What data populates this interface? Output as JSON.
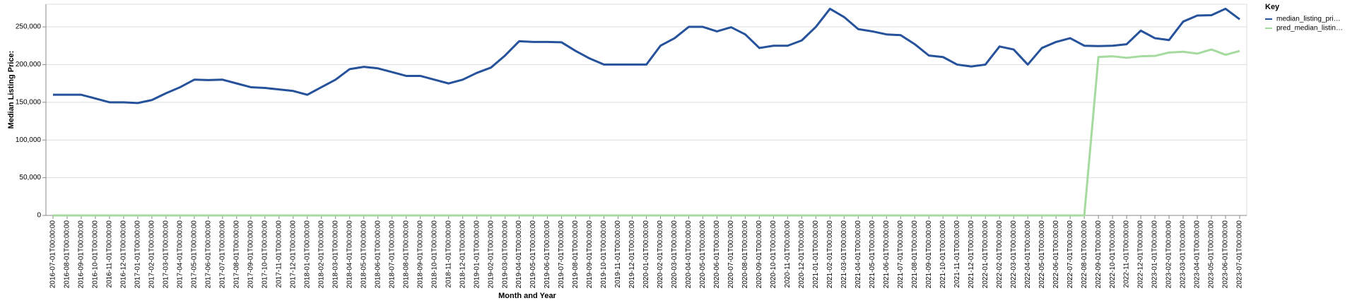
{
  "chart_data": {
    "type": "line",
    "x_label": "Month and Year",
    "y_label": "Median Listing Price:",
    "legend_title": "Key",
    "legend_position": "top-right",
    "grid": true,
    "ylim": [
      0,
      280000
    ],
    "yticks": [
      0,
      {
        "value": 50000,
        "label": "50,000"
      },
      {
        "value": 100000,
        "label": "100,000"
      },
      {
        "value": 150000,
        "label": "150,000"
      },
      {
        "value": 200000,
        "label": "200,000"
      },
      {
        "value": 250000,
        "label": "250,000"
      }
    ],
    "categories": [
      "2016-07-01T00:00:00",
      "2016-08-01T00:00:00",
      "2016-09-01T00:00:00",
      "2016-10-01T00:00:00",
      "2016-11-01T00:00:00",
      "2016-12-01T00:00:00",
      "2017-01-01T00:00:00",
      "2017-02-01T00:00:00",
      "2017-03-01T00:00:00",
      "2017-04-01T00:00:00",
      "2017-05-01T00:00:00",
      "2017-06-01T00:00:00",
      "2017-07-01T00:00:00",
      "2017-08-01T00:00:00",
      "2017-09-01T00:00:00",
      "2017-10-01T00:00:00",
      "2017-11-01T00:00:00",
      "2017-12-01T00:00:00",
      "2018-01-01T00:00:00",
      "2018-02-01T00:00:00",
      "2018-03-01T00:00:00",
      "2018-04-01T00:00:00",
      "2018-05-01T00:00:00",
      "2018-06-01T00:00:00",
      "2018-07-01T00:00:00",
      "2018-08-01T00:00:00",
      "2018-09-01T00:00:00",
      "2018-10-01T00:00:00",
      "2018-11-01T00:00:00",
      "2018-12-01T00:00:00",
      "2019-01-01T00:00:00",
      "2019-02-01T00:00:00",
      "2019-03-01T00:00:00",
      "2019-04-01T00:00:00",
      "2019-05-01T00:00:00",
      "2019-06-01T00:00:00",
      "2019-07-01T00:00:00",
      "2019-08-01T00:00:00",
      "2019-09-01T00:00:00",
      "2019-10-01T00:00:00",
      "2019-11-01T00:00:00",
      "2019-12-01T00:00:00",
      "2020-01-01T00:00:00",
      "2020-02-01T00:00:00",
      "2020-03-01T00:00:00",
      "2020-04-01T00:00:00",
      "2020-05-01T00:00:00",
      "2020-06-01T00:00:00",
      "2020-07-01T00:00:00",
      "2020-08-01T00:00:00",
      "2020-09-01T00:00:00",
      "2020-10-01T00:00:00",
      "2020-11-01T00:00:00",
      "2020-12-01T00:00:00",
      "2021-01-01T00:00:00",
      "2021-02-01T00:00:00",
      "2021-03-01T00:00:00",
      "2021-04-01T00:00:00",
      "2021-05-01T00:00:00",
      "2021-06-01T00:00:00",
      "2021-07-01T00:00:00",
      "2021-08-01T00:00:00",
      "2021-09-01T00:00:00",
      "2021-10-01T00:00:00",
      "2021-11-01T00:00:00",
      "2021-12-01T00:00:00",
      "2022-01-01T00:00:00",
      "2022-02-01T00:00:00",
      "2022-03-01T00:00:00",
      "2022-04-01T00:00:00",
      "2022-05-01T00:00:00",
      "2022-06-01T00:00:00",
      "2022-07-01T00:00:00",
      "2022-08-01T00:00:00",
      "2022-09-01T00:00:00",
      "2022-10-01T00:00:00",
      "2022-11-01T00:00:00",
      "2022-12-01T00:00:00",
      "2023-01-01T00:00:00",
      "2023-02-01T00:00:00",
      "2023-03-01T00:00:00",
      "2023-04-01T00:00:00",
      "2023-05-01T00:00:00",
      "2023-06-01T00:00:00",
      "2023-07-01T00:00:00"
    ],
    "series": [
      {
        "name": "median_listing_pri…",
        "color": "#26529b",
        "values": [
          160000,
          160000,
          160000,
          155000,
          150000,
          150000,
          149000,
          153000,
          162000,
          170000,
          180000,
          179500,
          180000,
          175000,
          170000,
          169000,
          167000,
          165000,
          160000,
          170000,
          180000,
          194000,
          197000,
          195000,
          190000,
          185000,
          185000,
          180000,
          175000,
          180000,
          189000,
          196000,
          212000,
          231000,
          230000,
          230000,
          229500,
          218000,
          208000,
          200000,
          200000,
          200000,
          200000,
          225000,
          235000,
          250000,
          250000,
          244000,
          249500,
          240000,
          222000,
          225000,
          225000,
          232000,
          250000,
          274000,
          263000,
          247000,
          244000,
          240000,
          239000,
          227000,
          212000,
          210000,
          200000,
          197500,
          200000,
          224000,
          220000,
          200000,
          222000,
          230000,
          235000,
          225000,
          224500,
          225000,
          227000,
          245000,
          235000,
          232500,
          257000,
          265000,
          265500,
          274000,
          260000
        ]
      },
      {
        "name": "pred_median_listin…",
        "color": "#a6dba0",
        "values": [
          0,
          0,
          0,
          0,
          0,
          0,
          0,
          0,
          0,
          0,
          0,
          0,
          0,
          0,
          0,
          0,
          0,
          0,
          0,
          0,
          0,
          0,
          0,
          0,
          0,
          0,
          0,
          0,
          0,
          0,
          0,
          0,
          0,
          0,
          0,
          0,
          0,
          0,
          0,
          0,
          0,
          0,
          0,
          0,
          0,
          0,
          0,
          0,
          0,
          0,
          0,
          0,
          0,
          0,
          0,
          0,
          0,
          0,
          0,
          0,
          0,
          0,
          0,
          0,
          0,
          0,
          0,
          0,
          0,
          0,
          0,
          0,
          0,
          0,
          210000,
          211000,
          209000,
          211000,
          211500,
          216000,
          217000,
          214500,
          220000,
          213000,
          218000
        ]
      }
    ]
  }
}
